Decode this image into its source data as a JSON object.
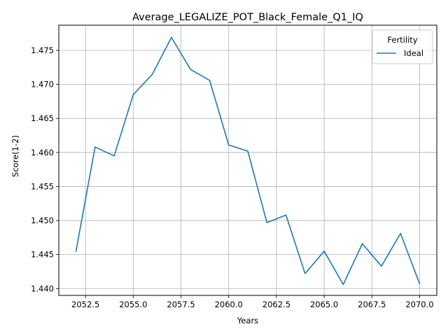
{
  "chart_data": {
    "type": "line",
    "title": "Average_LEGALIZE_POT_Black_Female_Q1_IQ",
    "xlabel": "Years",
    "ylabel": "Score(1-2)",
    "xlim": [
      2051.1,
      2070.9
    ],
    "ylim": [
      1.439,
      1.4787
    ],
    "xticks": [
      2052.5,
      2055.0,
      2057.5,
      2060.0,
      2062.5,
      2065.0,
      2067.5,
      2070.0
    ],
    "xtick_labels": [
      "2052.5",
      "2055.0",
      "2057.5",
      "2060.0",
      "2062.5",
      "2065.0",
      "2067.5",
      "2070.0"
    ],
    "yticks": [
      1.44,
      1.445,
      1.45,
      1.455,
      1.46,
      1.465,
      1.47,
      1.475
    ],
    "ytick_labels": [
      "1.440",
      "1.445",
      "1.450",
      "1.455",
      "1.460",
      "1.465",
      "1.470",
      "1.475"
    ],
    "grid": true,
    "legend": {
      "title": "Fertility",
      "placement": "top-right"
    },
    "series": [
      {
        "name": "Ideal",
        "color": "#1f77b4",
        "x": [
          2052,
          2053,
          2054,
          2055,
          2056,
          2057,
          2058,
          2059,
          2060,
          2061,
          2062,
          2063,
          2064,
          2065,
          2066,
          2067,
          2068,
          2069,
          2070
        ],
        "y": [
          1.4455,
          1.4608,
          1.4595,
          1.4685,
          1.4715,
          1.4769,
          1.4722,
          1.4706,
          1.4611,
          1.4602,
          1.4497,
          1.4508,
          1.4422,
          1.4455,
          1.4406,
          1.4466,
          1.4433,
          1.4481,
          1.4407
        ]
      }
    ]
  }
}
